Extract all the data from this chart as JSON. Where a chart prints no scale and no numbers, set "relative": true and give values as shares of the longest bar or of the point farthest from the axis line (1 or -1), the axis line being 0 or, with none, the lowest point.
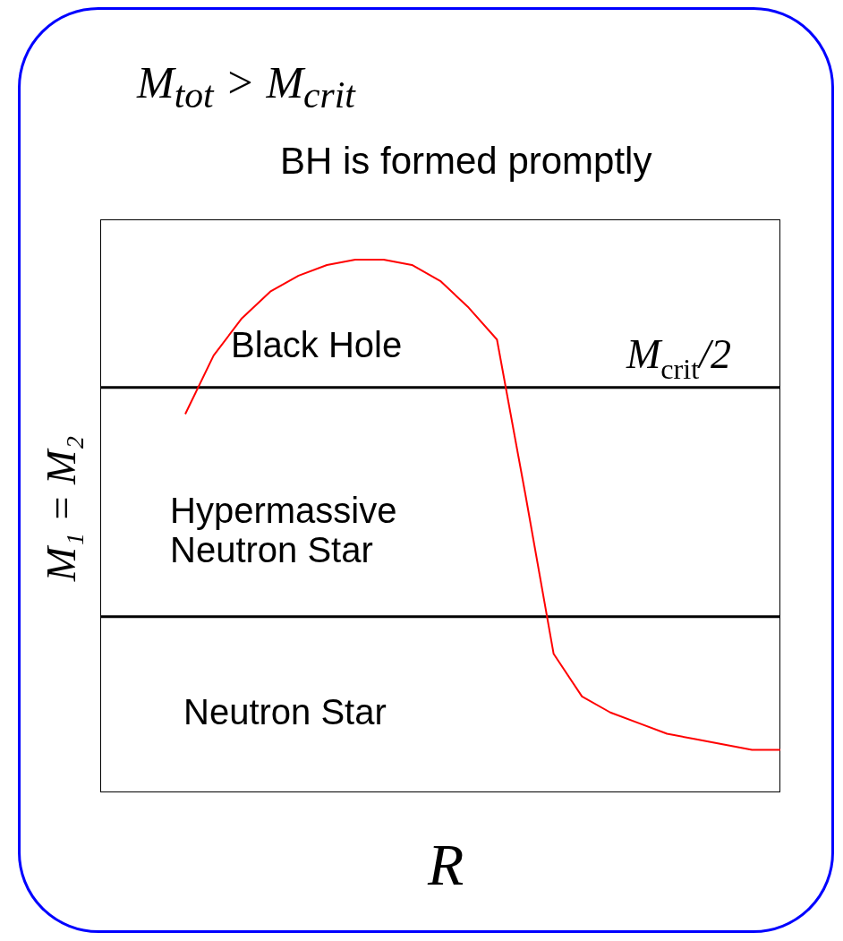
{
  "chart_data": {
    "type": "line",
    "title": "M$_{tot}$ > M$_{crit}$",
    "subtitle": "BH is formed promptly",
    "xlabel": "R",
    "ylabel": "M₁ = M₂",
    "relative": true,
    "categories": [
      null,
      null,
      null,
      null,
      null,
      null,
      null,
      null,
      null,
      null,
      null,
      null,
      null,
      null,
      null,
      null,
      null,
      null,
      null,
      null,
      null,
      null,
      null,
      null,
      null
    ],
    "series": [
      {
        "color": "#ff0000",
        "values": [
          null,
          null,
          null,
          0.71,
          0.82,
          0.89,
          0.94,
          0.97,
          0.99,
          1.0,
          1.0,
          0.99,
          0.96,
          0.91,
          0.85,
          0.56,
          0.26,
          0.18,
          0.15,
          0.13,
          0.11,
          0.1,
          0.09,
          0.08,
          0.08
        ]
      }
    ],
    "ref_lines": [
      {
        "axis": "y",
        "value": 0.76,
        "label": "M$_{crit}$/2",
        "color": "#000000"
      },
      {
        "axis": "y",
        "value": 0.33,
        "color": "#000000"
      }
    ],
    "annotations": [
      "Black Hole",
      "Hypermassive\nNeutron Star",
      "Neutron Star"
    ]
  }
}
